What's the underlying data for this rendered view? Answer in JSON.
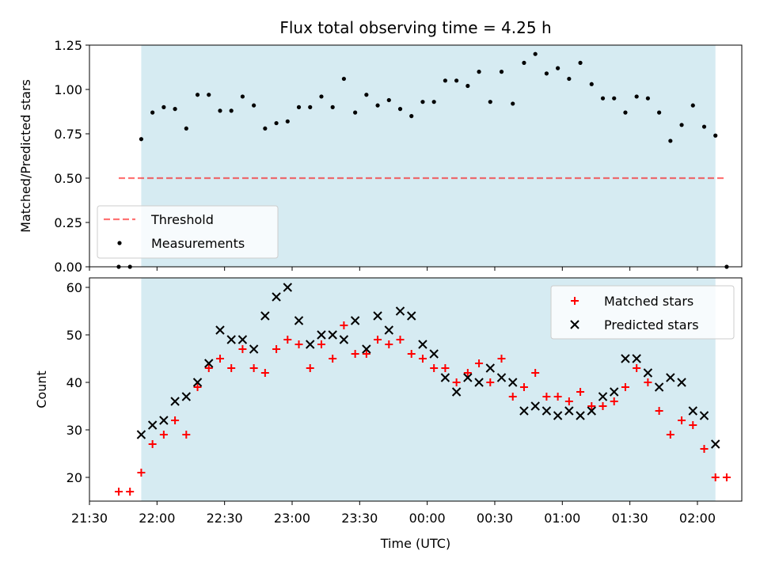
{
  "chart_data": {
    "title": "Flux total observing time = 4.25 h",
    "xlabel": "Time (UTC)",
    "x_ticks": [
      "21:30",
      "22:00",
      "22:30",
      "23:00",
      "23:30",
      "00:00",
      "00:30",
      "01:00",
      "01:30",
      "02:00"
    ],
    "observing_window": [
      "21:53",
      "02:08"
    ],
    "colors": {
      "window": "#add8e6",
      "threshold": "#ff0000",
      "matched": "#ff0000",
      "predicted": "#000000",
      "measurements": "#000000"
    },
    "top": {
      "type": "scatter",
      "ylabel": "Matched/Predicted stars",
      "ylim": [
        0,
        1.25
      ],
      "y_ticks": [
        "0.00",
        "0.25",
        "0.50",
        "0.75",
        "1.00",
        "1.25"
      ],
      "legend": {
        "position": "lower-left",
        "entries": [
          "Threshold",
          "Measurements"
        ]
      },
      "threshold": {
        "value": 0.5,
        "x_range": [
          "21:43",
          "02:13"
        ]
      },
      "measurements": [
        [
          "21:43",
          0.0
        ],
        [
          "21:48",
          0.0
        ],
        [
          "21:53",
          0.72
        ],
        [
          "21:58",
          0.87
        ],
        [
          "22:03",
          0.9
        ],
        [
          "22:08",
          0.89
        ],
        [
          "22:13",
          0.78
        ],
        [
          "22:18",
          0.97
        ],
        [
          "22:23",
          0.97
        ],
        [
          "22:28",
          0.88
        ],
        [
          "22:33",
          0.88
        ],
        [
          "22:38",
          0.96
        ],
        [
          "22:43",
          0.91
        ],
        [
          "22:48",
          0.78
        ],
        [
          "22:53",
          0.81
        ],
        [
          "22:58",
          0.82
        ],
        [
          "23:03",
          0.9
        ],
        [
          "23:08",
          0.9
        ],
        [
          "23:13",
          0.96
        ],
        [
          "23:18",
          0.9
        ],
        [
          "23:23",
          1.06
        ],
        [
          "23:28",
          0.87
        ],
        [
          "23:33",
          0.97
        ],
        [
          "23:38",
          0.91
        ],
        [
          "23:43",
          0.94
        ],
        [
          "23:48",
          0.89
        ],
        [
          "23:53",
          0.85
        ],
        [
          "23:58",
          0.93
        ],
        [
          "00:03",
          0.93
        ],
        [
          "00:08",
          1.05
        ],
        [
          "00:13",
          1.05
        ],
        [
          "00:18",
          1.02
        ],
        [
          "00:23",
          1.1
        ],
        [
          "00:28",
          0.93
        ],
        [
          "00:33",
          1.1
        ],
        [
          "00:38",
          0.92
        ],
        [
          "00:43",
          1.15
        ],
        [
          "00:48",
          1.2
        ],
        [
          "00:53",
          1.09
        ],
        [
          "00:58",
          1.12
        ],
        [
          "01:03",
          1.06
        ],
        [
          "01:08",
          1.15
        ],
        [
          "01:13",
          1.03
        ],
        [
          "01:18",
          0.95
        ],
        [
          "01:23",
          0.95
        ],
        [
          "01:28",
          0.87
        ],
        [
          "01:33",
          0.96
        ],
        [
          "01:38",
          0.95
        ],
        [
          "01:43",
          0.87
        ],
        [
          "01:48",
          0.71
        ],
        [
          "01:53",
          0.8
        ],
        [
          "01:58",
          0.91
        ],
        [
          "02:03",
          0.79
        ],
        [
          "02:08",
          0.74
        ],
        [
          "02:13",
          0.0
        ]
      ]
    },
    "bottom": {
      "type": "scatter",
      "ylabel": "Count",
      "ylim": [
        15,
        62
      ],
      "y_ticks": [
        "20",
        "30",
        "40",
        "50",
        "60"
      ],
      "legend": {
        "position": "upper-right",
        "entries": [
          "Matched stars",
          "Predicted stars"
        ]
      },
      "matched": [
        [
          "21:43",
          17
        ],
        [
          "21:48",
          17
        ],
        [
          "21:53",
          21
        ],
        [
          "21:58",
          27
        ],
        [
          "22:03",
          29
        ],
        [
          "22:08",
          32
        ],
        [
          "22:13",
          29
        ],
        [
          "22:18",
          39
        ],
        [
          "22:23",
          43
        ],
        [
          "22:28",
          45
        ],
        [
          "22:33",
          43
        ],
        [
          "22:38",
          47
        ],
        [
          "22:43",
          43
        ],
        [
          "22:48",
          42
        ],
        [
          "22:53",
          47
        ],
        [
          "22:58",
          49
        ],
        [
          "23:03",
          48
        ],
        [
          "23:08",
          43
        ],
        [
          "23:13",
          48
        ],
        [
          "23:18",
          45
        ],
        [
          "23:23",
          52
        ],
        [
          "23:28",
          46
        ],
        [
          "23:33",
          46
        ],
        [
          "23:38",
          49
        ],
        [
          "23:43",
          48
        ],
        [
          "23:48",
          49
        ],
        [
          "23:53",
          46
        ],
        [
          "23:58",
          45
        ],
        [
          "00:03",
          43
        ],
        [
          "00:08",
          43
        ],
        [
          "00:13",
          40
        ],
        [
          "00:18",
          42
        ],
        [
          "00:23",
          44
        ],
        [
          "00:28",
          40
        ],
        [
          "00:33",
          45
        ],
        [
          "00:38",
          37
        ],
        [
          "00:43",
          39
        ],
        [
          "00:48",
          42
        ],
        [
          "00:53",
          37
        ],
        [
          "00:58",
          37
        ],
        [
          "01:03",
          36
        ],
        [
          "01:08",
          38
        ],
        [
          "01:13",
          35
        ],
        [
          "01:18",
          35
        ],
        [
          "01:23",
          36
        ],
        [
          "01:28",
          39
        ],
        [
          "01:33",
          43
        ],
        [
          "01:38",
          40
        ],
        [
          "01:43",
          34
        ],
        [
          "01:48",
          29
        ],
        [
          "01:53",
          32
        ],
        [
          "01:58",
          31
        ],
        [
          "02:03",
          26
        ],
        [
          "02:08",
          20
        ],
        [
          "02:13",
          20
        ]
      ],
      "predicted": [
        [
          "21:53",
          29
        ],
        [
          "21:58",
          31
        ],
        [
          "22:03",
          32
        ],
        [
          "22:08",
          36
        ],
        [
          "22:13",
          37
        ],
        [
          "22:18",
          40
        ],
        [
          "22:23",
          44
        ],
        [
          "22:28",
          51
        ],
        [
          "22:33",
          49
        ],
        [
          "22:38",
          49
        ],
        [
          "22:43",
          47
        ],
        [
          "22:48",
          54
        ],
        [
          "22:53",
          58
        ],
        [
          "22:58",
          60
        ],
        [
          "23:03",
          53
        ],
        [
          "23:08",
          48
        ],
        [
          "23:13",
          50
        ],
        [
          "23:18",
          50
        ],
        [
          "23:23",
          49
        ],
        [
          "23:28",
          53
        ],
        [
          "23:33",
          47
        ],
        [
          "23:38",
          54
        ],
        [
          "23:43",
          51
        ],
        [
          "23:48",
          55
        ],
        [
          "23:53",
          54
        ],
        [
          "23:58",
          48
        ],
        [
          "00:03",
          46
        ],
        [
          "00:08",
          41
        ],
        [
          "00:13",
          38
        ],
        [
          "00:18",
          41
        ],
        [
          "00:23",
          40
        ],
        [
          "00:28",
          43
        ],
        [
          "00:33",
          41
        ],
        [
          "00:38",
          40
        ],
        [
          "00:43",
          34
        ],
        [
          "00:48",
          35
        ],
        [
          "00:53",
          34
        ],
        [
          "00:58",
          33
        ],
        [
          "01:03",
          34
        ],
        [
          "01:08",
          33
        ],
        [
          "01:13",
          34
        ],
        [
          "01:18",
          37
        ],
        [
          "01:23",
          38
        ],
        [
          "01:28",
          45
        ],
        [
          "01:33",
          45
        ],
        [
          "01:38",
          42
        ],
        [
          "01:43",
          39
        ],
        [
          "01:48",
          41
        ],
        [
          "01:53",
          40
        ],
        [
          "01:58",
          34
        ],
        [
          "02:03",
          33
        ],
        [
          "02:08",
          27
        ]
      ]
    }
  }
}
